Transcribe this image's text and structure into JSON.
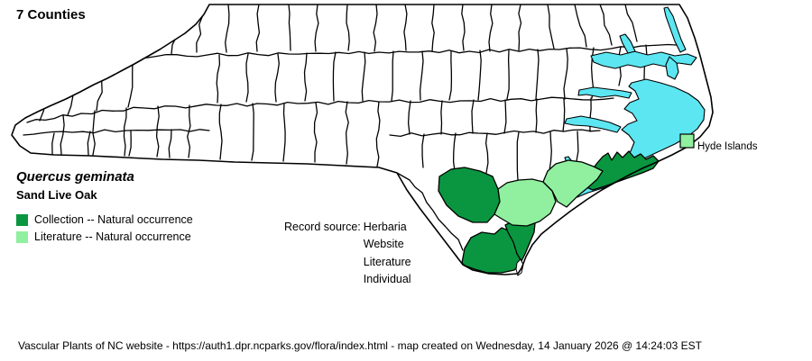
{
  "header": {
    "title": "7 Counties"
  },
  "species": {
    "scientific_name": "Quercus geminata",
    "common_name": "Sand Live Oak"
  },
  "legend": {
    "items": [
      {
        "label": "Collection -- Natural occurrence",
        "color": "#0a9640"
      },
      {
        "label": "Literature -- Natural occurrence",
        "color": "#90f0a0"
      }
    ]
  },
  "record_source": {
    "label": "Record source:",
    "values": [
      "Herbaria",
      "Website",
      "Literature",
      "Individual"
    ]
  },
  "map": {
    "island_label": "Hyde Islands",
    "colors": {
      "collection": "#0a9640",
      "literature": "#90f0a0",
      "water": "#5ce6f2",
      "land": "#ffffff",
      "border": "#000000"
    }
  },
  "footer": {
    "text": "Vascular Plants of NC website - https://auth1.dpr.ncparks.gov/flora/index.html - map created on Wednesday, 14 January 2026 @ 14:24:03 EST"
  }
}
